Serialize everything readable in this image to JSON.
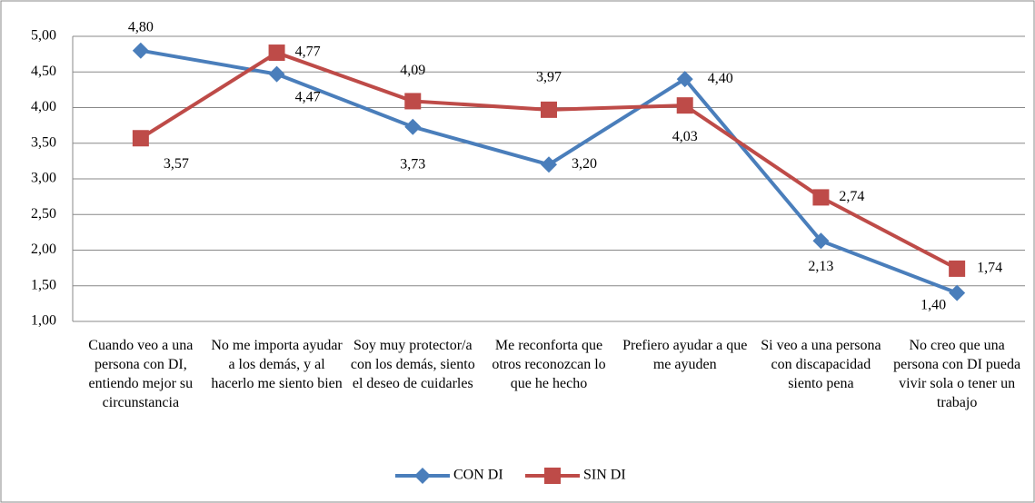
{
  "chart_data": {
    "type": "line",
    "categories": [
      "Cuando veo a una persona con DI, entiendo mejor su circunstancia",
      "No me importa ayudar a los demás, y al hacerlo me siento bien",
      "Soy muy protector/a con los demás, siento el deseo de cuidarles",
      "Me reconforta que otros reconozcan lo que he hecho",
      "Prefiero ayudar a que me ayuden",
      "Si veo a una persona con discapacidad siento pena",
      "No creo que una persona con DI pueda vivir sola o tener un trabajo"
    ],
    "series": [
      {
        "name": "CON DI",
        "color": "#4a7ebb",
        "marker": "diamond",
        "values": [
          4.8,
          4.47,
          3.73,
          3.2,
          4.4,
          2.13,
          1.4
        ],
        "value_labels": [
          "4,80",
          "4,47",
          "3,73",
          "3,20",
          "4,40",
          "2,13",
          "1,40"
        ]
      },
      {
        "name": "SIN DI",
        "color": "#be4b48",
        "marker": "square",
        "values": [
          3.57,
          4.77,
          4.09,
          3.97,
          4.03,
          2.74,
          1.74
        ],
        "value_labels": [
          "3,57",
          "4,77",
          "4,09",
          "3,97",
          "4,03",
          "2,74",
          "1,74"
        ]
      }
    ],
    "ylim": [
      1,
      5
    ],
    "yticks": [
      {
        "value": 1,
        "label": "1,00"
      },
      {
        "value": 1.5,
        "label": "1,50"
      },
      {
        "value": 2,
        "label": "2,00"
      },
      {
        "value": 2.5,
        "label": "2,50"
      },
      {
        "value": 3,
        "label": "3,00"
      },
      {
        "value": 3.5,
        "label": "3,50"
      },
      {
        "value": 4,
        "label": "4,00"
      },
      {
        "value": 4.5,
        "label": "4,50"
      },
      {
        "value": 5,
        "label": "5,00"
      }
    ],
    "grid": true,
    "legend": "bottom"
  }
}
